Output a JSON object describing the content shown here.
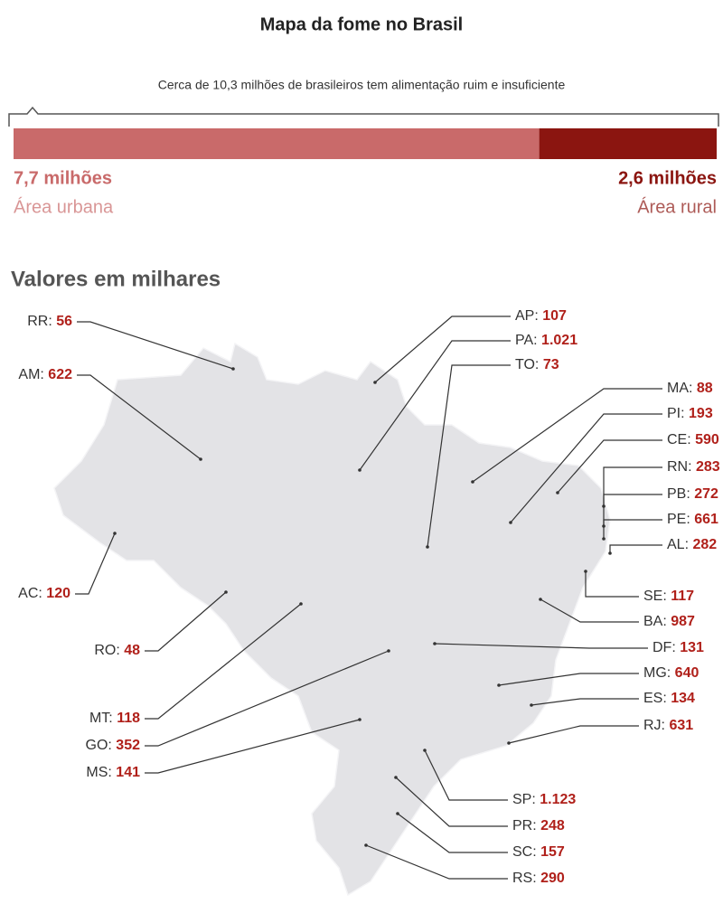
{
  "chart_data": [
    {
      "type": "bar",
      "title": "Mapa da fome no Brasil",
      "subtitle": "Cerca de 10,3 milhões de brasileiros tem alimentação ruim e insuficiente",
      "orientation": "horizontal",
      "stacked": true,
      "series": [
        {
          "name": "Área urbana",
          "color": "#c96a6a",
          "values": [
            7.7
          ],
          "value_labels": [
            "7,7 milhões"
          ]
        },
        {
          "name": "Área rural",
          "color": "#8b1510",
          "values": [
            2.6
          ],
          "value_labels": [
            "2,6 milhões"
          ]
        }
      ]
    },
    {
      "type": "map",
      "title": "Valores em milhares",
      "color": "#b0201a",
      "categories": [
        "RR",
        "AM",
        "AC",
        "RO",
        "MT",
        "GO",
        "MS",
        "AP",
        "PA",
        "TO",
        "MA",
        "PI",
        "CE",
        "RN",
        "PB",
        "PE",
        "AL",
        "SE",
        "BA",
        "DF",
        "MG",
        "ES",
        "RJ",
        "SP",
        "PR",
        "SC",
        "RS"
      ],
      "values": [
        56,
        622,
        120,
        48,
        118,
        352,
        141,
        107,
        1021,
        73,
        88,
        193,
        590,
        283,
        272,
        661,
        282,
        117,
        987,
        131,
        640,
        134,
        631,
        1123,
        248,
        157,
        290
      ],
      "value_labels": [
        "56",
        "622",
        "120",
        "48",
        "118",
        "352",
        "141",
        "107",
        "1.021",
        "73",
        "88",
        "193",
        "590",
        "283",
        "272",
        "661",
        "282",
        "117",
        "987",
        "131",
        "640",
        "134",
        "631",
        "1.123",
        "248",
        "157",
        "290"
      ]
    }
  ]
}
